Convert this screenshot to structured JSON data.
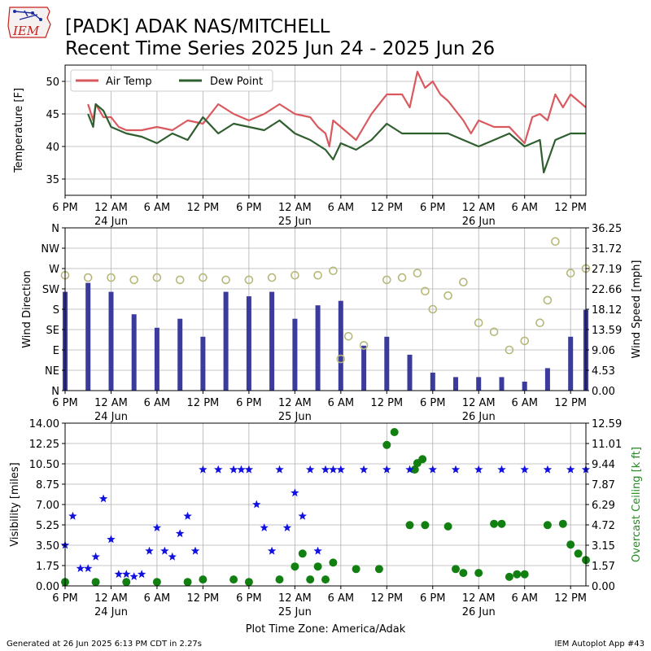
{
  "header": {
    "logo_text": "IEM",
    "title_line1": "[PADK] ADAK NAS/MITCHELL",
    "title_line2": "Recent Time Series 2025 Jun 24 - 2025 Jun 26"
  },
  "footer": {
    "generated": "Generated at 26 Jun 2025 6:13 PM CDT in 2.27s",
    "app": "IEM Autoplot App #43",
    "tz_label": "Plot Time Zone: America/Adak"
  },
  "colors": {
    "air_temp": "#d9595e",
    "dew_point": "#2f5f2f",
    "wind_speed_bars": "#3b3b9e",
    "wind_dir_markers": "#b8b87a",
    "visibility": "#1010e0",
    "ceiling": "#118011",
    "ceiling_axis_label": "#228b22",
    "grid": "#b0b0b0"
  },
  "x_axis": {
    "tick_hours": [
      0,
      6,
      12,
      18,
      24,
      30,
      36,
      42,
      48,
      54,
      60,
      66
    ],
    "tick_labels": [
      "6 PM",
      "12 AM",
      "6 AM",
      "12 PM",
      "6 PM",
      "12 AM",
      "6 AM",
      "12 PM",
      "6 PM",
      "12 AM",
      "6 AM",
      "12 PM"
    ],
    "date_labels": [
      {
        "hour": 6,
        "text": "24 Jun"
      },
      {
        "hour": 30,
        "text": "25 Jun"
      },
      {
        "hour": 54,
        "text": "26 Jun"
      }
    ],
    "start": "2025-06-23 18:00",
    "end": "2025-06-26 14:00"
  },
  "chart_data": [
    {
      "type": "line",
      "ylabel": "Temperature [F]",
      "ylim": [
        32.5,
        52.5
      ],
      "yticks": [
        35,
        40,
        45,
        50
      ],
      "grid": true,
      "legend": "top-left",
      "series": [
        {
          "name": "Air Temp",
          "x": [
            "2025-06-23 21:00",
            "2025-06-23 21:40",
            "2025-06-23 22:00",
            "2025-06-23 23:00",
            "2025-06-24 00:00",
            "2025-06-24 01:00",
            "2025-06-24 02:00",
            "2025-06-24 04:00",
            "2025-06-24 06:00",
            "2025-06-24 08:00",
            "2025-06-24 10:00",
            "2025-06-24 12:00",
            "2025-06-24 14:00",
            "2025-06-24 16:00",
            "2025-06-24 18:00",
            "2025-06-24 20:00",
            "2025-06-24 22:00",
            "2025-06-25 00:00",
            "2025-06-25 02:00",
            "2025-06-25 03:00",
            "2025-06-25 04:00",
            "2025-06-25 04:30",
            "2025-06-25 05:00",
            "2025-06-25 06:00",
            "2025-06-25 08:00",
            "2025-06-25 10:00",
            "2025-06-25 12:00",
            "2025-06-25 14:00",
            "2025-06-25 15:00",
            "2025-06-25 16:00",
            "2025-06-25 17:00",
            "2025-06-25 18:00",
            "2025-06-25 19:00",
            "2025-06-25 20:00",
            "2025-06-25 22:00",
            "2025-06-25 23:00",
            "2025-06-26 00:00",
            "2025-06-26 02:00",
            "2025-06-26 04:00",
            "2025-06-26 06:00",
            "2025-06-26 07:00",
            "2025-06-26 08:00",
            "2025-06-26 09:00",
            "2025-06-26 10:00",
            "2025-06-26 11:00",
            "2025-06-26 12:00",
            "2025-06-26 13:00",
            "2025-06-26 14:00"
          ],
          "values": [
            46.5,
            44,
            46.5,
            44.5,
            44.5,
            43,
            42.5,
            42.5,
            43,
            42.5,
            44,
            43.5,
            46.5,
            45,
            44,
            45,
            46.5,
            45,
            44.5,
            43,
            42,
            40,
            44,
            43,
            41,
            45,
            48,
            48,
            46,
            51.5,
            49,
            50,
            48,
            47,
            44,
            42,
            44,
            43,
            43,
            40.5,
            44.5,
            45,
            44,
            48,
            46,
            48,
            47,
            46
          ]
        },
        {
          "name": "Dew Point",
          "x": [
            "2025-06-23 21:00",
            "2025-06-23 21:40",
            "2025-06-23 22:00",
            "2025-06-23 23:00",
            "2025-06-24 00:00",
            "2025-06-24 02:00",
            "2025-06-24 04:00",
            "2025-06-24 06:00",
            "2025-06-24 08:00",
            "2025-06-24 10:00",
            "2025-06-24 12:00",
            "2025-06-24 14:00",
            "2025-06-24 16:00",
            "2025-06-24 18:00",
            "2025-06-24 20:00",
            "2025-06-24 22:00",
            "2025-06-25 00:00",
            "2025-06-25 02:00",
            "2025-06-25 04:00",
            "2025-06-25 05:00",
            "2025-06-25 06:00",
            "2025-06-25 08:00",
            "2025-06-25 10:00",
            "2025-06-25 12:00",
            "2025-06-25 14:00",
            "2025-06-25 16:00",
            "2025-06-25 18:00",
            "2025-06-25 20:00",
            "2025-06-25 22:00",
            "2025-06-26 00:00",
            "2025-06-26 02:00",
            "2025-06-26 04:00",
            "2025-06-26 06:00",
            "2025-06-26 08:00",
            "2025-06-26 08:30",
            "2025-06-26 10:00",
            "2025-06-26 12:00",
            "2025-06-26 14:00"
          ],
          "values": [
            45,
            43,
            46.5,
            45.5,
            43,
            42,
            41.5,
            40.5,
            42,
            41,
            44.5,
            42,
            43.5,
            43,
            42.5,
            44,
            42,
            41,
            39.5,
            38,
            40.5,
            39.5,
            41,
            43.5,
            42,
            42,
            42,
            42,
            41,
            40,
            41,
            42,
            40,
            41,
            36,
            41,
            42,
            42
          ]
        }
      ]
    },
    {
      "type": "bar",
      "ylabel": "Wind Direction",
      "y2label": "Wind Speed [mph]",
      "y_ticklabels": [
        "N",
        "NE",
        "E",
        "SE",
        "S",
        "SW",
        "W",
        "NW",
        "N"
      ],
      "y2_ticklabels": [
        "0.00",
        "4.53",
        "9.06",
        "13.59",
        "18.12",
        "22.66",
        "27.19",
        "31.72",
        "36.25"
      ],
      "y2lim": [
        0,
        36.25
      ],
      "grid": true,
      "series": [
        {
          "name": "",
          "x": [
            "2025-06-23 18:00",
            "2025-06-23 21:00",
            "2025-06-24 00:00",
            "2025-06-24 03:00",
            "2025-06-24 06:00",
            "2025-06-24 09:00",
            "2025-06-24 12:00",
            "2025-06-24 15:00",
            "2025-06-24 18:00",
            "2025-06-24 21:00",
            "2025-06-25 00:00",
            "2025-06-25 03:00",
            "2025-06-25 06:00",
            "2025-06-25 09:00",
            "2025-06-25 12:00",
            "2025-06-25 15:00",
            "2025-06-25 18:00",
            "2025-06-25 21:00",
            "2025-06-26 00:00",
            "2025-06-26 03:00",
            "2025-06-26 06:00",
            "2025-06-26 09:00",
            "2025-06-26 12:00",
            "2025-06-26 14:00"
          ],
          "values": [
            22,
            24,
            22,
            17,
            14,
            16,
            12,
            22,
            21,
            22,
            16,
            19,
            20,
            10,
            12,
            8,
            4,
            3,
            3,
            3,
            2,
            5,
            12,
            18
          ]
        },
        {
          "name": "",
          "x": [
            "2025-06-23 18:00",
            "2025-06-23 21:00",
            "2025-06-24 00:00",
            "2025-06-24 03:00",
            "2025-06-24 06:00",
            "2025-06-24 09:00",
            "2025-06-24 12:00",
            "2025-06-24 15:00",
            "2025-06-24 18:00",
            "2025-06-24 21:00",
            "2025-06-25 00:00",
            "2025-06-25 03:00",
            "2025-06-25 05:00",
            "2025-06-25 06:00",
            "2025-06-25 07:00",
            "2025-06-25 09:00",
            "2025-06-25 12:00",
            "2025-06-25 14:00",
            "2025-06-25 16:00",
            "2025-06-25 17:00",
            "2025-06-25 18:00",
            "2025-06-25 20:00",
            "2025-06-25 22:00",
            "2025-06-26 00:00",
            "2025-06-26 02:00",
            "2025-06-26 04:00",
            "2025-06-26 06:00",
            "2025-06-26 08:00",
            "2025-06-26 09:00",
            "2025-06-26 10:00",
            "2025-06-26 12:00",
            "2025-06-26 14:00"
          ],
          "values": [
            255,
            250,
            250,
            245,
            250,
            245,
            250,
            245,
            245,
            250,
            255,
            255,
            265,
            70,
            120,
            100,
            245,
            250,
            260,
            220,
            180,
            210,
            240,
            150,
            130,
            90,
            110,
            150,
            200,
            330,
            260,
            270
          ]
        }
      ]
    },
    {
      "type": "scatter",
      "ylabel": "Visibility [miles]",
      "y2label": "Overcast Ceiling [k ft]",
      "ylim": [
        0,
        14
      ],
      "yticks": [
        "0.00",
        "1.75",
        "3.50",
        "5.25",
        "7.00",
        "8.75",
        "10.50",
        "12.25",
        "14.00"
      ],
      "y2lim": [
        0,
        12.59
      ],
      "y2ticks": [
        "0.00",
        "1.57",
        "3.15",
        "4.72",
        "6.29",
        "7.87",
        "9.44",
        "11.01",
        "12.59"
      ],
      "grid": true,
      "series": [
        {
          "name": "",
          "x": [
            "2025-06-23 18:00",
            "2025-06-23 19:00",
            "2025-06-23 20:00",
            "2025-06-23 21:00",
            "2025-06-23 22:00",
            "2025-06-23 23:00",
            "2025-06-24 00:00",
            "2025-06-24 01:00",
            "2025-06-24 02:00",
            "2025-06-24 03:00",
            "2025-06-24 04:00",
            "2025-06-24 05:00",
            "2025-06-24 06:00",
            "2025-06-24 07:00",
            "2025-06-24 08:00",
            "2025-06-24 09:00",
            "2025-06-24 10:00",
            "2025-06-24 11:00",
            "2025-06-24 12:00",
            "2025-06-24 14:00",
            "2025-06-24 16:00",
            "2025-06-24 17:00",
            "2025-06-24 18:00",
            "2025-06-24 19:00",
            "2025-06-24 20:00",
            "2025-06-24 21:00",
            "2025-06-24 22:00",
            "2025-06-24 23:00",
            "2025-06-25 00:00",
            "2025-06-25 01:00",
            "2025-06-25 02:00",
            "2025-06-25 03:00",
            "2025-06-25 04:00",
            "2025-06-25 05:00",
            "2025-06-25 06:00",
            "2025-06-25 09:00",
            "2025-06-25 12:00",
            "2025-06-25 15:00",
            "2025-06-25 18:00",
            "2025-06-25 21:00",
            "2025-06-26 00:00",
            "2025-06-26 03:00",
            "2025-06-26 06:00",
            "2025-06-26 09:00",
            "2025-06-26 12:00",
            "2025-06-26 14:00"
          ],
          "values": [
            3.5,
            6,
            1.5,
            1.5,
            2.5,
            7.5,
            4,
            1,
            1,
            0.8,
            1,
            3,
            5,
            3,
            2.5,
            4.5,
            6,
            3,
            10,
            10,
            10,
            10,
            10,
            7,
            5,
            3,
            10,
            5,
            8,
            6,
            10,
            3,
            10,
            10,
            10,
            10,
            10,
            10,
            10,
            10,
            10,
            10,
            10,
            10,
            10,
            10
          ]
        },
        {
          "name": "",
          "x": [
            "2025-06-23 18:00",
            "2025-06-23 22:00",
            "2025-06-24 02:00",
            "2025-06-24 06:00",
            "2025-06-24 10:00",
            "2025-06-24 12:00",
            "2025-06-24 16:00",
            "2025-06-24 18:00",
            "2025-06-24 22:00",
            "2025-06-25 00:00",
            "2025-06-25 01:00",
            "2025-06-25 02:00",
            "2025-06-25 03:00",
            "2025-06-25 04:00",
            "2025-06-25 05:00",
            "2025-06-25 08:00",
            "2025-06-25 11:00",
            "2025-06-25 12:00",
            "2025-06-25 13:00",
            "2025-06-25 15:00",
            "2025-06-25 15:40",
            "2025-06-25 16:00",
            "2025-06-25 16:40",
            "2025-06-25 17:00",
            "2025-06-25 20:00",
            "2025-06-25 21:00",
            "2025-06-25 22:00",
            "2025-06-26 00:00",
            "2025-06-26 02:00",
            "2025-06-26 03:00",
            "2025-06-26 04:00",
            "2025-06-26 05:00",
            "2025-06-26 06:00",
            "2025-06-26 09:00",
            "2025-06-26 11:00",
            "2025-06-26 12:00",
            "2025-06-26 13:00",
            "2025-06-26 14:00"
          ],
          "values": [
            0.3,
            0.3,
            0.3,
            0.3,
            0.3,
            0.5,
            0.5,
            0.3,
            0.5,
            1.5,
            2.5,
            0.5,
            1.5,
            0.5,
            1.8,
            1.3,
            1.3,
            10.9,
            11.9,
            4.7,
            9.0,
            9.5,
            9.8,
            4.7,
            4.6,
            1.3,
            1.0,
            1.0,
            4.8,
            4.8,
            0.7,
            0.9,
            0.9,
            4.7,
            4.8,
            3.2,
            2.5,
            2.0
          ]
        }
      ]
    }
  ]
}
